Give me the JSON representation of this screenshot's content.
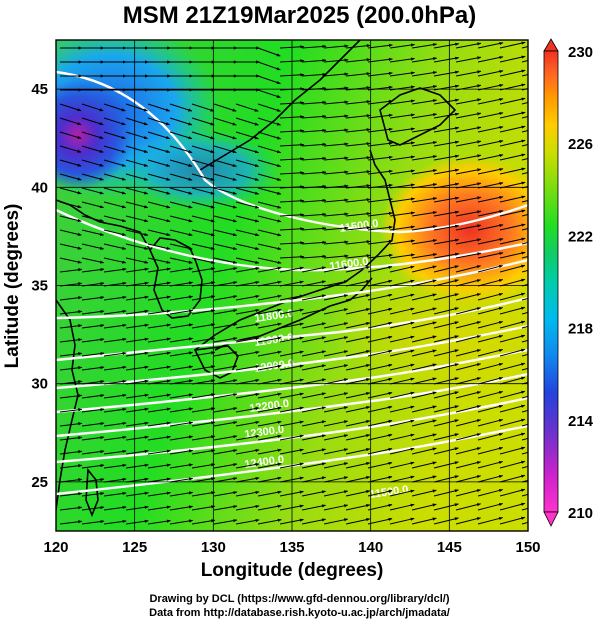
{
  "title": "MSM 21Z19Mar2025 (200.0hPa)",
  "map": {
    "x_axis": {
      "label": "Longitude (degrees)",
      "range": [
        120,
        150
      ],
      "ticks": [
        "120",
        "125",
        "130",
        "135",
        "140",
        "145",
        "150"
      ]
    },
    "y_axis": {
      "label": "Latitude  (degrees)",
      "range": [
        22.5,
        47.5
      ],
      "ticks": [
        "25",
        "30",
        "35",
        "40",
        "45"
      ]
    },
    "grid": true,
    "field": "temperature (shaded)",
    "overlays": [
      "wind vectors",
      "geopotential height contours (white)"
    ]
  },
  "colorbar": {
    "min": 210,
    "max": 230,
    "tick_labels": [
      "210",
      "214",
      "218",
      "222",
      "226",
      "230"
    ],
    "colors": [
      "#ff33cc",
      "#cc22cc",
      "#6633cc",
      "#2244dd",
      "#1188ee",
      "#00bbee",
      "#00ccaa",
      "#11cc66",
      "#22dd22",
      "#77dd11",
      "#ccdd00",
      "#ffcc00",
      "#ff9900",
      "#ff6622",
      "#ee3322"
    ]
  },
  "contour_labels": [
    "11500.0",
    "11600.0",
    "11800.0",
    "11900.0",
    "12000.0",
    "12200.0",
    "12300.0",
    "12400.0"
  ],
  "credits": [
    "Drawing by DCL (https://www.gfd-dennou.org/library/dcl/)",
    "Data from http://database.rish.kyoto-u.ac.jp/arch/jmadata/"
  ]
}
